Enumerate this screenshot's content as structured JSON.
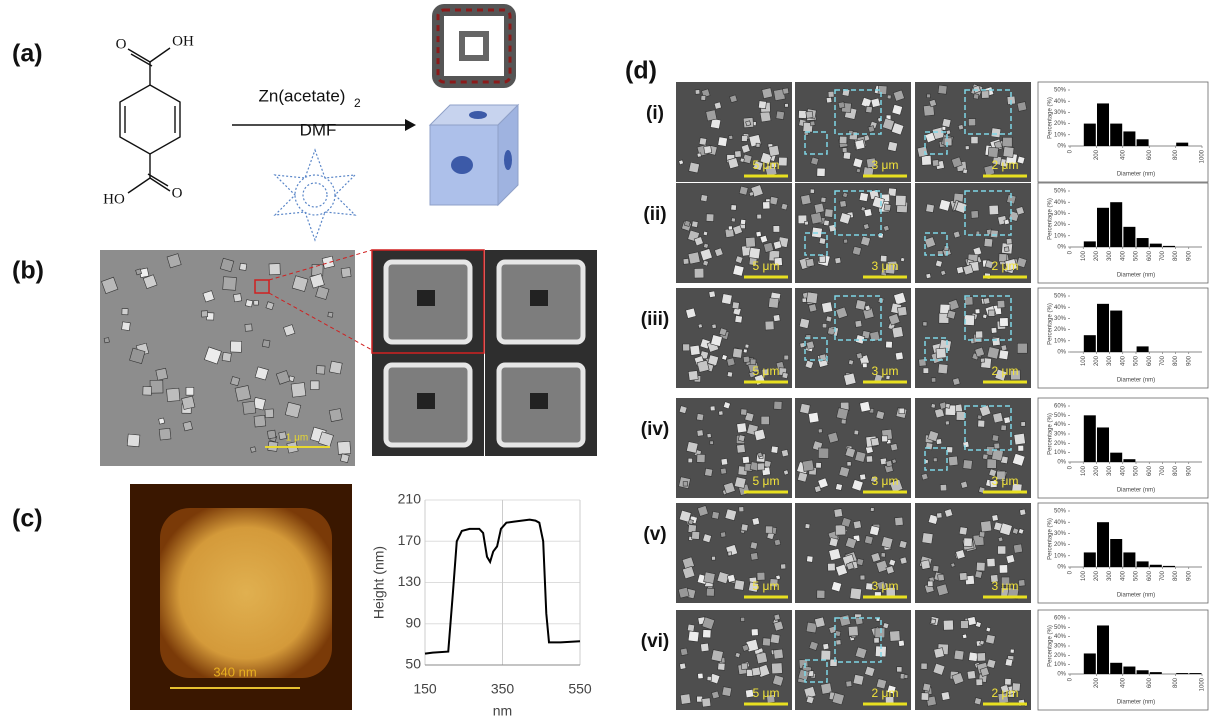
{
  "panels": {
    "a": {
      "label": "(a)",
      "reagent": "Zn(acetate)",
      "reagent_subscript": "2",
      "solvent": "DMF",
      "oh_top": "OH",
      "o_top": "O",
      "ho_bottom": "HO",
      "o_bottom": "O"
    },
    "b": {
      "label": "(b)",
      "scale_bar": "1 μm"
    },
    "c": {
      "label": "(c)",
      "scale_bar": "340 nm"
    },
    "d": {
      "label": "(d)",
      "rows": [
        {
          "label": "(i)",
          "scale_bars": [
            "5 μm",
            "3 μm",
            "2 μm"
          ]
        },
        {
          "label": "(ii)",
          "scale_bars": [
            "5 μm",
            "3 μm",
            "2 μm"
          ]
        },
        {
          "label": "(iii)",
          "scale_bars": [
            "5 μm",
            "3 μm",
            "2 μm"
          ]
        },
        {
          "label": "(iv)",
          "scale_bars": [
            "5 μm",
            "3 μm",
            "3 μm"
          ]
        },
        {
          "label": "(v)",
          "scale_bars": [
            "5 μm",
            "3 μm",
            "3 μm"
          ]
        },
        {
          "label": "(vi)",
          "scale_bars": [
            "5 μm",
            "2 μm",
            "2 μm"
          ]
        }
      ]
    }
  },
  "chart_data": [
    {
      "type": "line",
      "x_label": "nm",
      "y_label": "Height (nm)",
      "color": "#000000",
      "x": [
        150,
        170,
        210,
        222,
        232,
        245,
        265,
        290,
        300,
        310,
        318,
        326,
        336,
        346,
        360,
        380,
        400,
        420,
        435,
        445,
        455,
        463,
        470,
        500,
        550
      ],
      "values": [
        61,
        62,
        63,
        120,
        170,
        180,
        182,
        182,
        178,
        155,
        150,
        160,
        165,
        182,
        188,
        189,
        190,
        191,
        190,
        188,
        170,
        100,
        72,
        72,
        73
      ],
      "xlim": [
        150,
        550
      ],
      "xticks": [
        150,
        350,
        550
      ],
      "ylim": [
        50,
        210
      ],
      "yticks": [
        50,
        90,
        130,
        170,
        210
      ],
      "grid": true
    },
    {
      "type": "histogram",
      "x_label": "Diameter (nm)",
      "y_label": "Percentage (%)",
      "color": "#000000",
      "bins": [
        100,
        200,
        300,
        400,
        500,
        600,
        700,
        800,
        900,
        1000
      ],
      "values": [
        20,
        38,
        20,
        13,
        6,
        0,
        0,
        3,
        0
      ],
      "xlim": [
        0,
        1000
      ],
      "xticks": [
        0,
        200,
        400,
        600,
        800,
        1000
      ],
      "ylim": [
        0,
        50
      ],
      "yticks": [
        {
          "value": 0,
          "label": "0%"
        },
        {
          "value": 10,
          "label": "10%"
        },
        {
          "value": 20,
          "label": "20%"
        },
        {
          "value": 30,
          "label": "30%"
        },
        {
          "value": 40,
          "label": "40%"
        },
        {
          "value": 50,
          "label": "50%"
        }
      ]
    },
    {
      "type": "histogram",
      "x_label": "Diameter (nm)",
      "y_label": "Percentage (%)",
      "color": "#000000",
      "bins": [
        100,
        200,
        300,
        400,
        500,
        600,
        700,
        800,
        900,
        1000
      ],
      "values": [
        5,
        35,
        40,
        18,
        8,
        3,
        1,
        0,
        0
      ],
      "xlim": [
        0,
        1000
      ],
      "xticks": [
        0,
        100,
        200,
        300,
        400,
        500,
        600,
        700,
        800,
        900
      ],
      "ylim": [
        0,
        50
      ],
      "yticks": [
        {
          "value": 0,
          "label": "0%"
        },
        {
          "value": 10,
          "label": "10%"
        },
        {
          "value": 20,
          "label": "20%"
        },
        {
          "value": 30,
          "label": "30%"
        },
        {
          "value": 40,
          "label": "40%"
        },
        {
          "value": 50,
          "label": "50%"
        }
      ]
    },
    {
      "type": "histogram",
      "x_label": "Diameter (nm)",
      "y_label": "Percentage (%)",
      "color": "#000000",
      "bins": [
        100,
        200,
        300,
        400,
        500,
        600,
        700,
        800,
        900
      ],
      "values": [
        15,
        43,
        37,
        0,
        5,
        0,
        0,
        0
      ],
      "xlim": [
        0,
        1000
      ],
      "xticks": [
        100,
        200,
        300,
        400,
        500,
        600,
        700,
        800,
        900
      ],
      "ylim": [
        0,
        50
      ],
      "yticks": [
        {
          "value": 0,
          "label": "0%"
        },
        {
          "value": 10,
          "label": "10%"
        },
        {
          "value": 20,
          "label": "20%"
        },
        {
          "value": 30,
          "label": "30%"
        },
        {
          "value": 40,
          "label": "40%"
        },
        {
          "value": 50,
          "label": "50%"
        }
      ]
    },
    {
      "type": "histogram",
      "x_label": "Diameter (nm)",
      "y_label": "Percentage (%)",
      "color": "#000000",
      "bins": [
        100,
        200,
        300,
        400,
        500
      ],
      "values": [
        50,
        37,
        10,
        3
      ],
      "xlim": [
        0,
        1000
      ],
      "xticks": [
        0,
        100,
        200,
        300,
        400,
        500,
        600,
        700,
        800,
        900
      ],
      "ylim": [
        0,
        60
      ],
      "yticks": [
        {
          "value": 0,
          "label": "0%"
        },
        {
          "value": 10,
          "label": "10%"
        },
        {
          "value": 20,
          "label": "20%"
        },
        {
          "value": 30,
          "label": "30%"
        },
        {
          "value": 40,
          "label": "40%"
        },
        {
          "value": 50,
          "label": "50%"
        },
        {
          "value": 60,
          "label": "60%"
        }
      ]
    },
    {
      "type": "histogram",
      "x_label": "Diameter (nm)",
      "y_label": "Percentage (%)",
      "color": "#000000",
      "bins": [
        100,
        200,
        300,
        400,
        500,
        600,
        700,
        800,
        900
      ],
      "values": [
        13,
        40,
        25,
        13,
        5,
        2,
        1,
        0
      ],
      "xlim": [
        0,
        1000
      ],
      "xticks": [
        0,
        100,
        200,
        300,
        400,
        500,
        600,
        700,
        800,
        900
      ],
      "ylim": [
        0,
        50
      ],
      "yticks": [
        {
          "value": 0,
          "label": "0%"
        },
        {
          "value": 10,
          "label": "10%"
        },
        {
          "value": 20,
          "label": "20%"
        },
        {
          "value": 30,
          "label": "30%"
        },
        {
          "value": 40,
          "label": "40%"
        },
        {
          "value": 50,
          "label": "50%"
        }
      ]
    },
    {
      "type": "histogram",
      "x_label": "Diameter (nm)",
      "y_label": "Percentage (%)",
      "color": "#000000",
      "bins": [
        100,
        200,
        300,
        400,
        500,
        600,
        700,
        800,
        900,
        1000
      ],
      "values": [
        22,
        52,
        12,
        8,
        4,
        2,
        0,
        1,
        1
      ],
      "xlim": [
        0,
        1000
      ],
      "xticks": [
        0,
        200,
        400,
        600,
        800,
        1000
      ],
      "ylim": [
        0,
        60
      ],
      "yticks": [
        {
          "value": 0,
          "label": "0%"
        },
        {
          "value": 10,
          "label": "10%"
        },
        {
          "value": 20,
          "label": "20%"
        },
        {
          "value": 30,
          "label": "30%"
        },
        {
          "value": 40,
          "label": "40%"
        },
        {
          "value": 50,
          "label": "50%"
        },
        {
          "value": 60,
          "label": "60%"
        }
      ]
    }
  ]
}
